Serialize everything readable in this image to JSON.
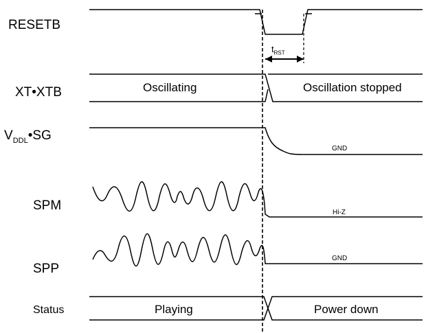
{
  "signals": {
    "resetb": "RESETB",
    "xt": "XT•XTB",
    "vddl_main": "V",
    "vddl_sub": "DDL",
    "vddl_rest": "•SG",
    "spm": "SPM",
    "spp": "SPP",
    "status": "Status"
  },
  "states": {
    "oscillating": "Oscillating",
    "oscillation_stopped": "Oscillation stopped",
    "playing": "Playing",
    "power_down": "Power down",
    "vddl_after": "GND",
    "spm_after": "Hi-Z",
    "spp_after": "GND"
  },
  "timing": {
    "trst_main": "t",
    "trst_sub": "RST"
  },
  "colors": {
    "line": "#000000",
    "background": "#ffffff"
  }
}
